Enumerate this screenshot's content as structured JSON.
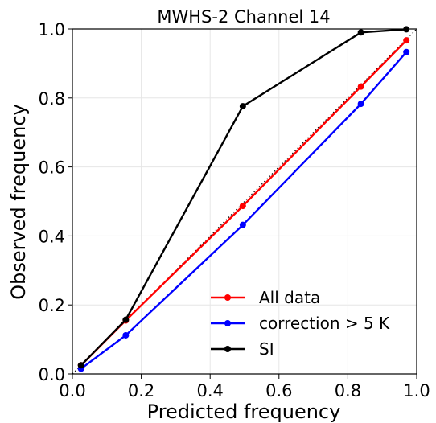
{
  "chart_data": {
    "type": "line",
    "title": "MWHS-2 Channel 14",
    "xlabel": "Predicted frequency",
    "ylabel": "Observed frequency",
    "xlim": [
      0.0,
      1.0
    ],
    "ylim": [
      0.0,
      1.0
    ],
    "xticks": [
      "0.0",
      "0.2",
      "0.4",
      "0.6",
      "0.8",
      "1.0"
    ],
    "yticks": [
      "0.0",
      "0.2",
      "0.4",
      "0.6",
      "0.8",
      "1.0"
    ],
    "grid": true,
    "legend_position": "lower-right",
    "reference_line": {
      "style": "dotted",
      "color": "#000000",
      "x": [
        0.0,
        1.0
      ],
      "y": [
        0.0,
        1.0
      ]
    },
    "series": [
      {
        "name": "All data",
        "color": "#ff0000",
        "x": [
          0.025,
          0.155,
          0.495,
          0.838,
          0.97
        ],
        "y": [
          0.025,
          0.155,
          0.487,
          0.833,
          0.967
        ]
      },
      {
        "name": "correction > 5 K",
        "color": "#0000ff",
        "x": [
          0.025,
          0.155,
          0.495,
          0.838,
          0.97
        ],
        "y": [
          0.015,
          0.112,
          0.432,
          0.783,
          0.933
        ]
      },
      {
        "name": "SI",
        "color": "#000000",
        "x": [
          0.025,
          0.155,
          0.495,
          0.838,
          0.97
        ],
        "y": [
          0.025,
          0.157,
          0.776,
          0.99,
          0.999
        ]
      }
    ]
  }
}
